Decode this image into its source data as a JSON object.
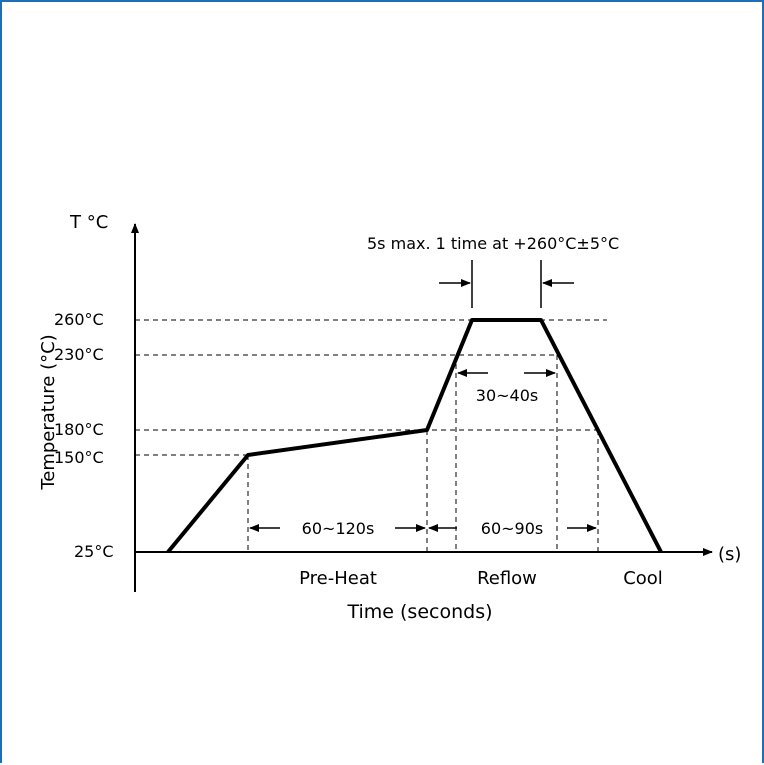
{
  "colors": {
    "frame": "#1f6fb8",
    "ink": "#000000"
  },
  "chart_data": {
    "type": "line",
    "title": "",
    "y_axis_symbol": "T °C",
    "ylabel": "Temperature (°C)",
    "xlabel": "Time (seconds)",
    "x_unit": "(s)",
    "y_ticks": [
      "25°C",
      "150°C",
      "180°C",
      "230°C",
      "260°C"
    ],
    "y_values": [
      25,
      150,
      180,
      230,
      260
    ],
    "profile": [
      {
        "phase": "start",
        "t": 25
      },
      {
        "phase": "ramp-to-preheat",
        "t": 150
      },
      {
        "phase": "preheat-end",
        "t": 180
      },
      {
        "phase": "peak-start",
        "t": 260
      },
      {
        "phase": "peak-end",
        "t": 260
      },
      {
        "phase": "end",
        "t": 25
      }
    ],
    "intervals": [
      {
        "label": "60~120s",
        "from_temp": 150,
        "to_temp": 180
      },
      {
        "label": "60~90s",
        "above_temp": 180
      },
      {
        "label": "30~40s",
        "above_temp": 230
      }
    ],
    "peak_note": "5s max. 1 time at +260°C±5°C",
    "zones": [
      "Pre-Heat",
      "Reflow",
      "Cool"
    ],
    "grid": false,
    "legend": "none"
  }
}
